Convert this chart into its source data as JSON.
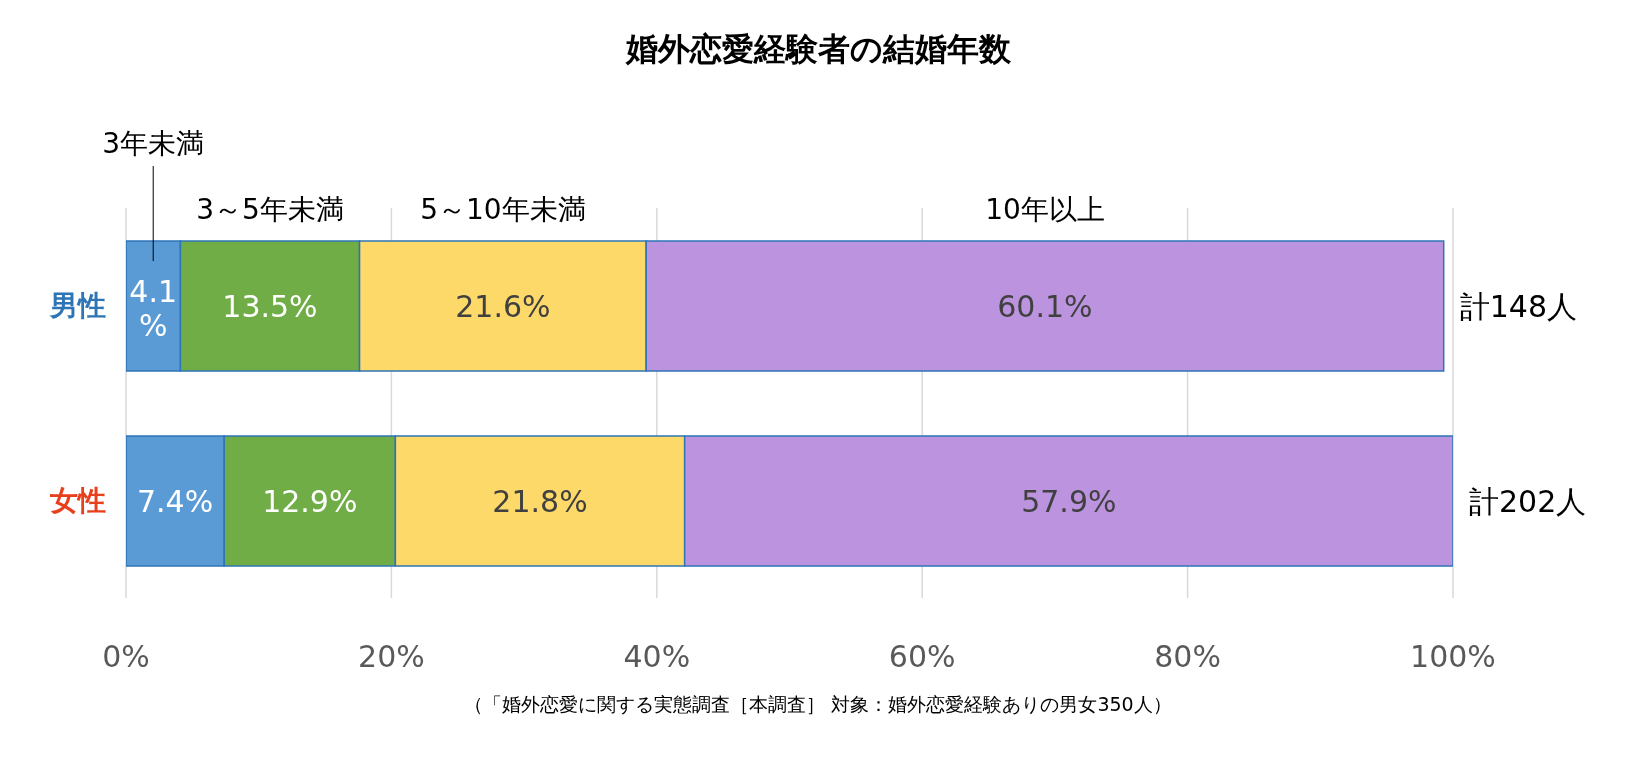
{
  "chart_data": {
    "type": "bar",
    "title": "婚外恋愛経験者の結婚年数",
    "orientation": "horizontal",
    "stacked": true,
    "categories": [
      "男性",
      "女性"
    ],
    "series": [
      {
        "name": "3年未満",
        "color": "#5b9bd5",
        "values": [
          4.1,
          7.4
        ],
        "value_labels": [
          "4.1%",
          "7.4%"
        ]
      },
      {
        "name": "3～5年未満",
        "color": "#70ad47",
        "values": [
          13.5,
          12.9
        ],
        "value_labels": [
          "13.5%",
          "12.9%"
        ]
      },
      {
        "name": "5～10年未満",
        "color": "#fdd96a",
        "values": [
          21.6,
          21.8
        ],
        "value_labels": [
          "21.6%",
          "21.8%"
        ]
      },
      {
        "name": "10年以上",
        "color": "#bc93de",
        "values": [
          60.1,
          57.9
        ],
        "value_labels": [
          "60.1%",
          "57.9%"
        ]
      }
    ],
    "totals": [
      "計148人",
      "計202人"
    ],
    "xlim": [
      0,
      100
    ],
    "xticks": [
      {
        "value": 0,
        "label": "0%"
      },
      {
        "value": 20,
        "label": "20%"
      },
      {
        "value": 40,
        "label": "40%"
      },
      {
        "value": 60,
        "label": "60%"
      },
      {
        "value": 80,
        "label": "80%"
      },
      {
        "value": 100,
        "label": "100%"
      }
    ],
    "grid": "x",
    "annotations": [
      "（「婚外恋愛に関する実態調査［本調査］ 対象：婚外恋愛経験ありの男女350人）"
    ]
  }
}
